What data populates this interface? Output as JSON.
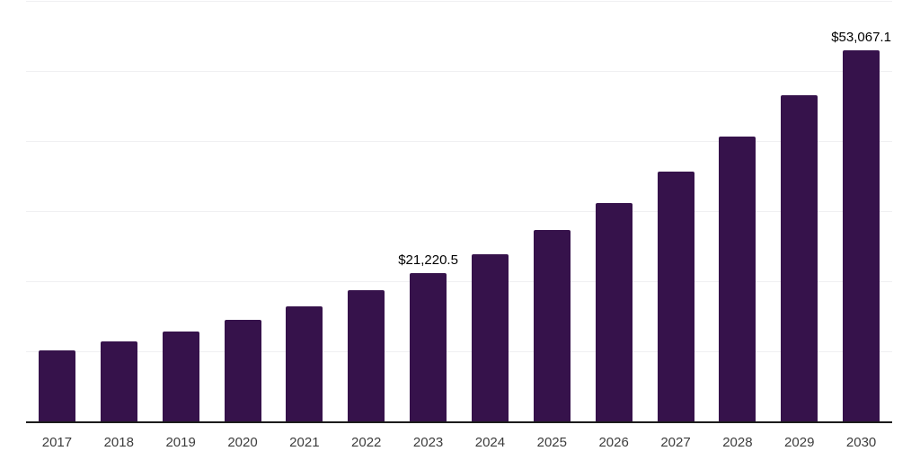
{
  "chart_data": {
    "type": "bar",
    "title": "",
    "xlabel": "",
    "ylabel": "",
    "categories": [
      "2017",
      "2018",
      "2019",
      "2020",
      "2021",
      "2022",
      "2023",
      "2024",
      "2025",
      "2026",
      "2027",
      "2028",
      "2029",
      "2030"
    ],
    "values": [
      10300,
      11600,
      13000,
      14640,
      16520,
      18790,
      21220.5,
      24040,
      27410,
      31250,
      35780,
      40820,
      46700,
      53067.1
    ],
    "data_labels": [
      null,
      null,
      null,
      null,
      null,
      null,
      "$21,220.5",
      null,
      null,
      null,
      null,
      null,
      null,
      "$53,067.1"
    ],
    "ylim": [
      0,
      60000
    ],
    "grid_step": 10000,
    "grid": true,
    "legend": false
  },
  "colors": {
    "bar": "#36124B",
    "axis_line": "#1c1c1c",
    "gridline": "#f0f0f2",
    "tick_label": "#3d3d3d",
    "data_label": "#000000",
    "background": "#ffffff"
  }
}
